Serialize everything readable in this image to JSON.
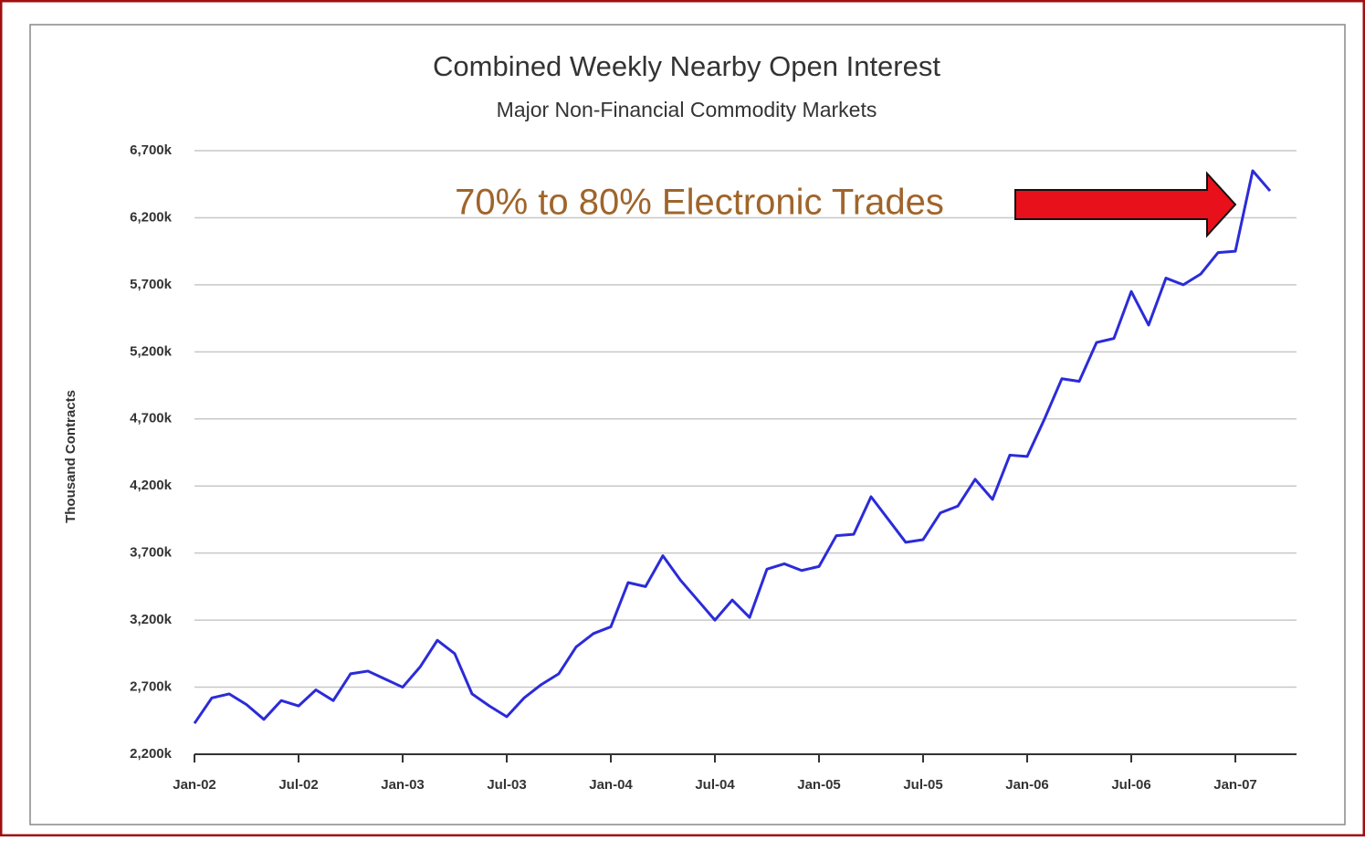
{
  "chart_data": {
    "type": "line",
    "title": "Combined Weekly Nearby Open Interest",
    "subtitle": "Major Non-Financial Commodity Markets",
    "y_label": "Thousand Contracts",
    "annotation": "70% to 80% Electronic Trades",
    "categories": [
      "Jan-02",
      null,
      null,
      null,
      null,
      null,
      "Jul-02",
      null,
      null,
      null,
      null,
      null,
      "Jan-03",
      null,
      null,
      null,
      null,
      null,
      "Jul-03",
      null,
      null,
      null,
      null,
      null,
      "Jan-04",
      null,
      null,
      null,
      null,
      null,
      "Jul-04",
      null,
      null,
      null,
      null,
      null,
      "Jan-05",
      null,
      null,
      null,
      null,
      null,
      "Jul-05",
      null,
      null,
      null,
      null,
      null,
      "Jan-06",
      null,
      null,
      null,
      null,
      null,
      "Jul-06",
      null,
      null,
      null,
      null,
      null,
      "Jan-07",
      null,
      null
    ],
    "series": [
      {
        "name": "Open Interest",
        "color": "#2b2bd9",
        "values": [
          2430,
          2620,
          2650,
          2570,
          2460,
          2600,
          2560,
          2680,
          2600,
          2800,
          2820,
          2760,
          2700,
          2850,
          3050,
          2950,
          2650,
          2560,
          2480,
          2620,
          2720,
          2800,
          3000,
          3100,
          3150,
          3480,
          3450,
          3680,
          3500,
          3350,
          3200,
          3350,
          3220,
          3580,
          3620,
          3570,
          3600,
          3830,
          3840,
          4120,
          3950,
          3780,
          3800,
          4000,
          4050,
          4250,
          4100,
          4430,
          4420,
          4700,
          5000,
          4980,
          5270,
          5300,
          5650,
          5400,
          5750,
          5700,
          5780,
          5940,
          5950,
          6550,
          6400
        ]
      }
    ],
    "ylim": [
      2200,
      6700
    ],
    "yticks": [
      {
        "value": 2200,
        "label": "2,200k"
      },
      {
        "value": 2700,
        "label": "2,700k"
      },
      {
        "value": 3200,
        "label": "3,200k"
      },
      {
        "value": 3700,
        "label": "3,700k"
      },
      {
        "value": 4200,
        "label": "4,200k"
      },
      {
        "value": 4700,
        "label": "4,700k"
      },
      {
        "value": 5200,
        "label": "5,200k"
      },
      {
        "value": 5700,
        "label": "5,700k"
      },
      {
        "value": 6200,
        "label": "6,200k"
      },
      {
        "value": 6700,
        "label": "6,700k"
      }
    ],
    "grid": true
  }
}
